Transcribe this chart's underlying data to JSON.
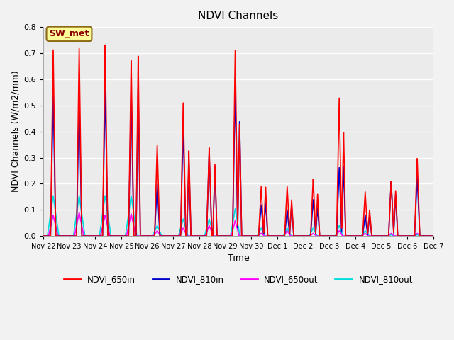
{
  "title": "NDVI Channels",
  "xlabel": "Time",
  "ylabel": "NDVI Channels (W/m2/mm)",
  "ylim": [
    0.0,
    0.8
  ],
  "yticks": [
    0.0,
    0.1,
    0.2,
    0.3,
    0.4,
    0.5,
    0.6,
    0.7,
    0.8
  ],
  "xtick_labels": [
    "Nov 22",
    "Nov 23",
    "Nov 24",
    "Nov 25",
    "Nov 26",
    "Nov 27",
    "Nov 28",
    "Nov 29",
    "Nov 30",
    "Dec 1",
    "Dec 2",
    "Dec 3",
    "Dec 4",
    "Dec 5",
    "Dec 6",
    "Dec 7"
  ],
  "annotation_text": "SW_met",
  "annotation_color": "#8B0000",
  "annotation_bg": "#FFFF99",
  "annotation_border": "#8B6914",
  "colors": {
    "NDVI_650in": "#FF0000",
    "NDVI_810in": "#0000CC",
    "NDVI_650out": "#FF00FF",
    "NDVI_810out": "#00DDDD"
  },
  "background_color": "#EBEBEB",
  "grid_color": "#FFFFFF",
  "fig_bg": "#F2F2F2",
  "peaks": [
    {
      "day": 0.38,
      "h650in": 0.72,
      "h810in": 0.55,
      "h650out": 0.08,
      "h810out": 0.155,
      "w650in": 0.1,
      "w810in": 0.1,
      "w650out": 0.18,
      "w810out": 0.22
    },
    {
      "day": 1.38,
      "h650in": 0.72,
      "h810in": 0.555,
      "h650out": 0.09,
      "h810out": 0.155,
      "w650in": 0.1,
      "w810in": 0.1,
      "w650out": 0.18,
      "w810out": 0.22
    },
    {
      "day": 2.38,
      "h650in": 0.735,
      "h810in": 0.565,
      "h650out": 0.08,
      "h810out": 0.155,
      "w650in": 0.1,
      "w810in": 0.1,
      "w650out": 0.18,
      "w810out": 0.22
    },
    {
      "day": 3.38,
      "h650in": 0.68,
      "h810in": 0.56,
      "h650out": 0.085,
      "h810out": 0.155,
      "w650in": 0.1,
      "w810in": 0.1,
      "w650out": 0.18,
      "w810out": 0.22
    },
    {
      "day": 3.65,
      "h650in": 0.7,
      "h810in": 0.575,
      "h650out": 0.0,
      "h810out": 0.0,
      "w650in": 0.08,
      "w810in": 0.08,
      "w650out": 0.0,
      "w810out": 0.0
    },
    {
      "day": 4.38,
      "h650in": 0.35,
      "h810in": 0.2,
      "h650out": 0.02,
      "h810out": 0.04,
      "w650in": 0.1,
      "w810in": 0.1,
      "w650out": 0.15,
      "w810out": 0.18
    },
    {
      "day": 5.38,
      "h650in": 0.51,
      "h810in": 0.42,
      "h650out": 0.03,
      "h810out": 0.065,
      "w650in": 0.1,
      "w810in": 0.1,
      "w650out": 0.15,
      "w810out": 0.18
    },
    {
      "day": 5.6,
      "h650in": 0.33,
      "h810in": 0.28,
      "h650out": 0.0,
      "h810out": 0.0,
      "w650in": 0.08,
      "w810in": 0.08,
      "w650out": 0.0,
      "w810out": 0.0
    },
    {
      "day": 6.38,
      "h650in": 0.34,
      "h810in": 0.32,
      "h650out": 0.04,
      "h810out": 0.065,
      "w650in": 0.1,
      "w810in": 0.1,
      "w650out": 0.15,
      "w810out": 0.18
    },
    {
      "day": 6.6,
      "h650in": 0.28,
      "h810in": 0.27,
      "h650out": 0.0,
      "h810out": 0.0,
      "w650in": 0.08,
      "w810in": 0.08,
      "w650out": 0.0,
      "w810out": 0.0
    },
    {
      "day": 7.38,
      "h650in": 0.72,
      "h810in": 0.58,
      "h650out": 0.06,
      "h810out": 0.105,
      "w650in": 0.1,
      "w810in": 0.1,
      "w650out": 0.15,
      "w810out": 0.18
    },
    {
      "day": 7.55,
      "h650in": 0.43,
      "h810in": 0.44,
      "h650out": 0.0,
      "h810out": 0.0,
      "w650in": 0.08,
      "w810in": 0.08,
      "w650out": 0.0,
      "w810out": 0.0
    },
    {
      "day": 8.38,
      "h650in": 0.19,
      "h810in": 0.12,
      "h650out": 0.01,
      "h810out": 0.03,
      "w650in": 0.1,
      "w810in": 0.1,
      "w650out": 0.13,
      "w810out": 0.15
    },
    {
      "day": 8.55,
      "h650in": 0.19,
      "h810in": 0.13,
      "h650out": 0.0,
      "h810out": 0.0,
      "w650in": 0.08,
      "w810in": 0.08,
      "w650out": 0.0,
      "w810out": 0.0
    },
    {
      "day": 9.38,
      "h650in": 0.19,
      "h810in": 0.1,
      "h650out": 0.02,
      "h810out": 0.03,
      "w650in": 0.1,
      "w810in": 0.1,
      "w650out": 0.13,
      "w810out": 0.15
    },
    {
      "day": 9.55,
      "h650in": 0.14,
      "h810in": 0.12,
      "h650out": 0.0,
      "h810out": 0.0,
      "w650in": 0.08,
      "w810in": 0.08,
      "w650out": 0.0,
      "w810out": 0.0
    },
    {
      "day": 10.38,
      "h650in": 0.22,
      "h810in": 0.14,
      "h650out": 0.01,
      "h810out": 0.03,
      "w650in": 0.1,
      "w810in": 0.1,
      "w650out": 0.13,
      "w810out": 0.15
    },
    {
      "day": 10.55,
      "h650in": 0.16,
      "h810in": 0.11,
      "h650out": 0.0,
      "h810out": 0.0,
      "w650in": 0.08,
      "w810in": 0.08,
      "w650out": 0.0,
      "w810out": 0.0
    },
    {
      "day": 11.38,
      "h650in": 0.535,
      "h810in": 0.265,
      "h650out": 0.02,
      "h810out": 0.04,
      "w650in": 0.1,
      "w810in": 0.1,
      "w650out": 0.13,
      "w810out": 0.15
    },
    {
      "day": 11.55,
      "h650in": 0.4,
      "h810in": 0.27,
      "h650out": 0.0,
      "h810out": 0.0,
      "w650in": 0.08,
      "w810in": 0.08,
      "w650out": 0.0,
      "w810out": 0.0
    },
    {
      "day": 12.38,
      "h650in": 0.17,
      "h810in": 0.08,
      "h650out": 0.01,
      "h810out": 0.02,
      "w650in": 0.1,
      "w810in": 0.1,
      "w650out": 0.13,
      "w810out": 0.15
    },
    {
      "day": 12.55,
      "h650in": 0.1,
      "h810in": 0.08,
      "h650out": 0.0,
      "h810out": 0.0,
      "w650in": 0.08,
      "w810in": 0.08,
      "w650out": 0.0,
      "w810out": 0.0
    },
    {
      "day": 13.38,
      "h650in": 0.21,
      "h810in": 0.21,
      "h650out": 0.01,
      "h810out": 0.005,
      "w650in": 0.1,
      "w810in": 0.1,
      "w650out": 0.13,
      "w810out": 0.15
    },
    {
      "day": 13.55,
      "h650in": 0.175,
      "h810in": 0.16,
      "h650out": 0.0,
      "h810out": 0.0,
      "w650in": 0.08,
      "w810in": 0.08,
      "w650out": 0.0,
      "w810out": 0.0
    },
    {
      "day": 14.38,
      "h650in": 0.3,
      "h810in": 0.23,
      "h650out": 0.01,
      "h810out": 0.005,
      "w650in": 0.1,
      "w810in": 0.1,
      "w650out": 0.13,
      "w810out": 0.15
    }
  ]
}
